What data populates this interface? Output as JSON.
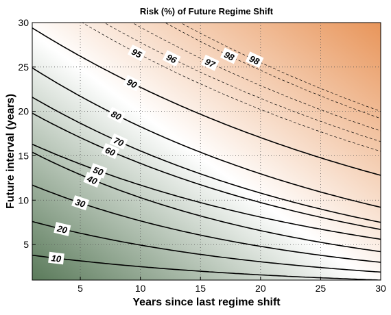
{
  "chart_data": {
    "type": "contour",
    "title": "Risk (%) of Future Regime Shift",
    "xlabel": "Years since last regime shift",
    "ylabel": "Future interval (years)",
    "xlim": [
      1,
      30
    ],
    "ylim": [
      1,
      30
    ],
    "xticks": [
      5,
      10,
      15,
      20,
      25,
      30
    ],
    "yticks": [
      5,
      10,
      15,
      20,
      25,
      30
    ],
    "grid": true,
    "colormap": {
      "low": "#5a7a5a",
      "mid": "#ffffff",
      "high": "#e8955a"
    },
    "contour_levels": [
      {
        "value": 10,
        "y_at_x1": 3.8,
        "y_at_x30": 1.0,
        "label": "10",
        "label_x": 3.0
      },
      {
        "value": 20,
        "y_at_x1": 7.6,
        "y_at_x30": 1.9,
        "label": "20",
        "label_x": 3.5
      },
      {
        "value": 30,
        "y_at_x1": 11.7,
        "y_at_x30": 3.0,
        "label": "30",
        "label_x": 5.0
      },
      {
        "value": 40,
        "y_at_x1": 15.4,
        "y_at_x30": 4.2,
        "label": "40",
        "label_x": 6.0
      },
      {
        "value": 50,
        "y_at_x1": 16.3,
        "y_at_x30": 5.6,
        "label": "50",
        "label_x": 6.5
      },
      {
        "value": 60,
        "y_at_x1": 19.8,
        "y_at_x30": 6.7,
        "label": "60",
        "label_x": 7.5
      },
      {
        "value": 70,
        "y_at_x1": 21.6,
        "y_at_x30": 7.5,
        "label": "70",
        "label_x": 8.2
      },
      {
        "value": 80,
        "y_at_x1": 24.9,
        "y_at_x30": 9.2,
        "label": "80",
        "label_x": 8.0
      },
      {
        "value": 90,
        "y_at_x1": 29.4,
        "y_at_x30": 12.8,
        "label": "90",
        "label_x": 9.3
      },
      {
        "value": 95,
        "y_at_x1": 33.5,
        "y_at_x30": 15.5,
        "label": "95",
        "label_x": 9.7
      },
      {
        "value": 96,
        "y_at_x1": 35.0,
        "y_at_x30": 16.6,
        "label": "96",
        "label_x": 12.6
      },
      {
        "value": 97,
        "y_at_x1": 37.0,
        "y_at_x30": 17.8,
        "label": "97",
        "label_x": 15.8
      },
      {
        "value": 98,
        "y_at_x1": 39.5,
        "y_at_x30": 19.2,
        "label": "98",
        "label_x": 17.4
      },
      {
        "value": 98,
        "y_at_x1": 40.5,
        "y_at_x30": 20.0,
        "label": "98",
        "label_x": 19.5
      }
    ]
  }
}
